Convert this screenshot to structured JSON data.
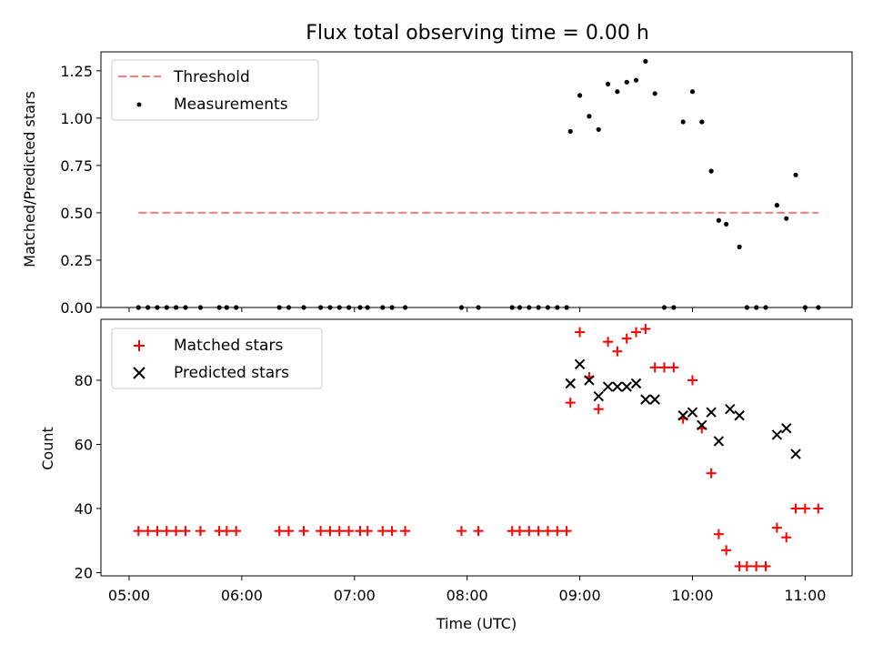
{
  "chart_data": [
    {
      "type": "scatter",
      "title": "Flux total observing time = 0.00 h",
      "xlabel": "",
      "ylabel": "Matched/Predicted stars",
      "ylim": [
        0.0,
        1.35
      ],
      "xlim": [
        "04:45",
        "11:25"
      ],
      "yticks": [
        "0.00",
        "0.25",
        "0.50",
        "0.75",
        "1.00",
        "1.25"
      ],
      "legend_position": "top-left",
      "threshold": {
        "name": "Threshold",
        "color": "#ff7b7b",
        "style": "dashed",
        "x": [
          "05:05",
          "11:07"
        ],
        "y": 0.5
      },
      "series": [
        {
          "name": "Measurements",
          "color": "#000000",
          "marker": "dot",
          "points": [
            [
              "05:05",
              0.0
            ],
            [
              "05:10",
              0.0
            ],
            [
              "05:15",
              0.0
            ],
            [
              "05:20",
              0.0
            ],
            [
              "05:25",
              0.0
            ],
            [
              "05:30",
              0.0
            ],
            [
              "05:38",
              0.0
            ],
            [
              "05:48",
              0.0
            ],
            [
              "05:52",
              0.0
            ],
            [
              "05:57",
              0.0
            ],
            [
              "06:20",
              0.0
            ],
            [
              "06:25",
              0.0
            ],
            [
              "06:33",
              0.0
            ],
            [
              "06:42",
              0.0
            ],
            [
              "06:47",
              0.0
            ],
            [
              "06:52",
              0.0
            ],
            [
              "06:57",
              0.0
            ],
            [
              "07:03",
              0.0
            ],
            [
              "07:07",
              0.0
            ],
            [
              "07:15",
              0.0
            ],
            [
              "07:20",
              0.0
            ],
            [
              "07:27",
              0.0
            ],
            [
              "07:57",
              0.0
            ],
            [
              "08:06",
              0.0
            ],
            [
              "08:24",
              0.0
            ],
            [
              "08:28",
              0.0
            ],
            [
              "08:33",
              0.0
            ],
            [
              "08:38",
              0.0
            ],
            [
              "08:43",
              0.0
            ],
            [
              "08:48",
              0.0
            ],
            [
              "08:53",
              0.0
            ],
            [
              "08:55",
              0.93
            ],
            [
              "09:00",
              1.12
            ],
            [
              "09:05",
              1.01
            ],
            [
              "09:10",
              0.94
            ],
            [
              "09:15",
              1.18
            ],
            [
              "09:20",
              1.14
            ],
            [
              "09:25",
              1.19
            ],
            [
              "09:30",
              1.2
            ],
            [
              "09:35",
              1.3
            ],
            [
              "09:40",
              1.13
            ],
            [
              "09:45",
              0.0
            ],
            [
              "09:50",
              0.0
            ],
            [
              "09:55",
              0.98
            ],
            [
              "10:00",
              1.14
            ],
            [
              "10:05",
              0.98
            ],
            [
              "10:10",
              0.72
            ],
            [
              "10:14",
              0.46
            ],
            [
              "10:18",
              0.44
            ],
            [
              "10:25",
              0.32
            ],
            [
              "10:29",
              0.0
            ],
            [
              "10:34",
              0.0
            ],
            [
              "10:39",
              0.0
            ],
            [
              "10:45",
              0.54
            ],
            [
              "10:50",
              0.47
            ],
            [
              "10:55",
              0.7
            ],
            [
              "11:00",
              0.0
            ],
            [
              "11:07",
              0.0
            ]
          ]
        }
      ]
    },
    {
      "type": "scatter",
      "title": "",
      "xlabel": "Time (UTC)",
      "ylabel": "Count",
      "ylim": [
        19,
        99
      ],
      "xlim": [
        "04:45",
        "11:25"
      ],
      "xticks": [
        "05:00",
        "06:00",
        "07:00",
        "08:00",
        "09:00",
        "10:00",
        "11:00"
      ],
      "yticks": [
        "20",
        "40",
        "60",
        "80"
      ],
      "legend_position": "top-left",
      "series": [
        {
          "name": "Matched stars",
          "color": "#ff0000",
          "marker": "plus",
          "points": [
            [
              "05:05",
              33
            ],
            [
              "05:10",
              33
            ],
            [
              "05:15",
              33
            ],
            [
              "05:20",
              33
            ],
            [
              "05:25",
              33
            ],
            [
              "05:30",
              33
            ],
            [
              "05:38",
              33
            ],
            [
              "05:48",
              33
            ],
            [
              "05:52",
              33
            ],
            [
              "05:57",
              33
            ],
            [
              "06:20",
              33
            ],
            [
              "06:25",
              33
            ],
            [
              "06:33",
              33
            ],
            [
              "06:42",
              33
            ],
            [
              "06:47",
              33
            ],
            [
              "06:52",
              33
            ],
            [
              "06:57",
              33
            ],
            [
              "07:03",
              33
            ],
            [
              "07:07",
              33
            ],
            [
              "07:15",
              33
            ],
            [
              "07:20",
              33
            ],
            [
              "07:27",
              33
            ],
            [
              "07:57",
              33
            ],
            [
              "08:06",
              33
            ],
            [
              "08:24",
              33
            ],
            [
              "08:28",
              33
            ],
            [
              "08:33",
              33
            ],
            [
              "08:38",
              33
            ],
            [
              "08:43",
              33
            ],
            [
              "08:48",
              33
            ],
            [
              "08:53",
              33
            ],
            [
              "08:55",
              73
            ],
            [
              "09:00",
              95
            ],
            [
              "09:05",
              81
            ],
            [
              "09:10",
              71
            ],
            [
              "09:15",
              92
            ],
            [
              "09:20",
              89
            ],
            [
              "09:25",
              93
            ],
            [
              "09:30",
              95
            ],
            [
              "09:35",
              96
            ],
            [
              "09:40",
              84
            ],
            [
              "09:45",
              84
            ],
            [
              "09:50",
              84
            ],
            [
              "09:55",
              68
            ],
            [
              "10:00",
              80
            ],
            [
              "10:05",
              65
            ],
            [
              "10:10",
              51
            ],
            [
              "10:14",
              32
            ],
            [
              "10:18",
              27
            ],
            [
              "10:25",
              22
            ],
            [
              "10:29",
              22
            ],
            [
              "10:34",
              22
            ],
            [
              "10:39",
              22
            ],
            [
              "10:45",
              34
            ],
            [
              "10:50",
              31
            ],
            [
              "10:55",
              40
            ],
            [
              "11:00",
              40
            ],
            [
              "11:07",
              40
            ]
          ]
        },
        {
          "name": "Predicted stars",
          "color": "#000000",
          "marker": "x",
          "points": [
            [
              "08:55",
              79
            ],
            [
              "09:00",
              85
            ],
            [
              "09:05",
              80
            ],
            [
              "09:10",
              75
            ],
            [
              "09:15",
              78
            ],
            [
              "09:20",
              78
            ],
            [
              "09:25",
              78
            ],
            [
              "09:30",
              79
            ],
            [
              "09:35",
              74
            ],
            [
              "09:40",
              74
            ],
            [
              "09:55",
              69
            ],
            [
              "10:00",
              70
            ],
            [
              "10:05",
              66
            ],
            [
              "10:10",
              70
            ],
            [
              "10:14",
              61
            ],
            [
              "10:20",
              71
            ],
            [
              "10:25",
              69
            ],
            [
              "10:45",
              63
            ],
            [
              "10:50",
              65
            ],
            [
              "10:55",
              57
            ]
          ]
        }
      ]
    }
  ]
}
